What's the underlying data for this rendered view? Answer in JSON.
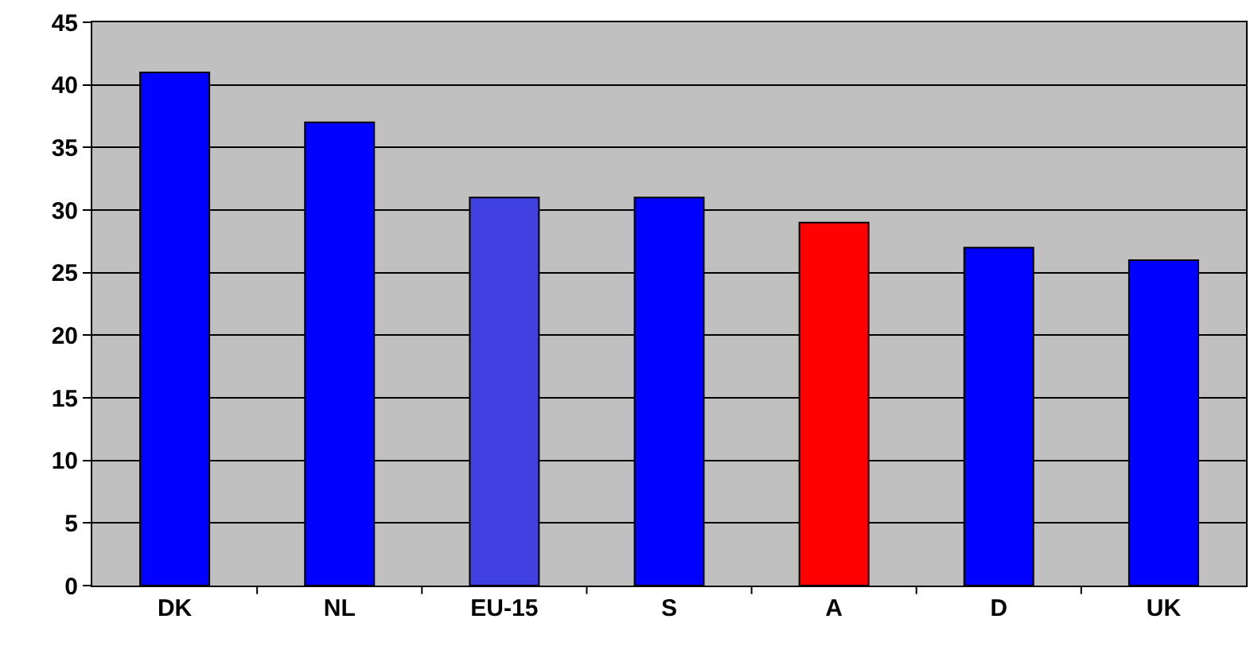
{
  "chart_data": {
    "type": "bar",
    "categories": [
      "DK",
      "NL",
      "EU-15",
      "S",
      "A",
      "D",
      "UK"
    ],
    "values": [
      41,
      37,
      31,
      31,
      29,
      27,
      26
    ],
    "colors": [
      "#0000ff",
      "#0000ff",
      "#4040e0",
      "#0000ff",
      "#ff0000",
      "#0000ff",
      "#0000ff"
    ],
    "ylim": [
      0,
      45
    ],
    "yticks": [
      0,
      5,
      10,
      15,
      20,
      25,
      30,
      35,
      40,
      45
    ],
    "grid": "y"
  }
}
